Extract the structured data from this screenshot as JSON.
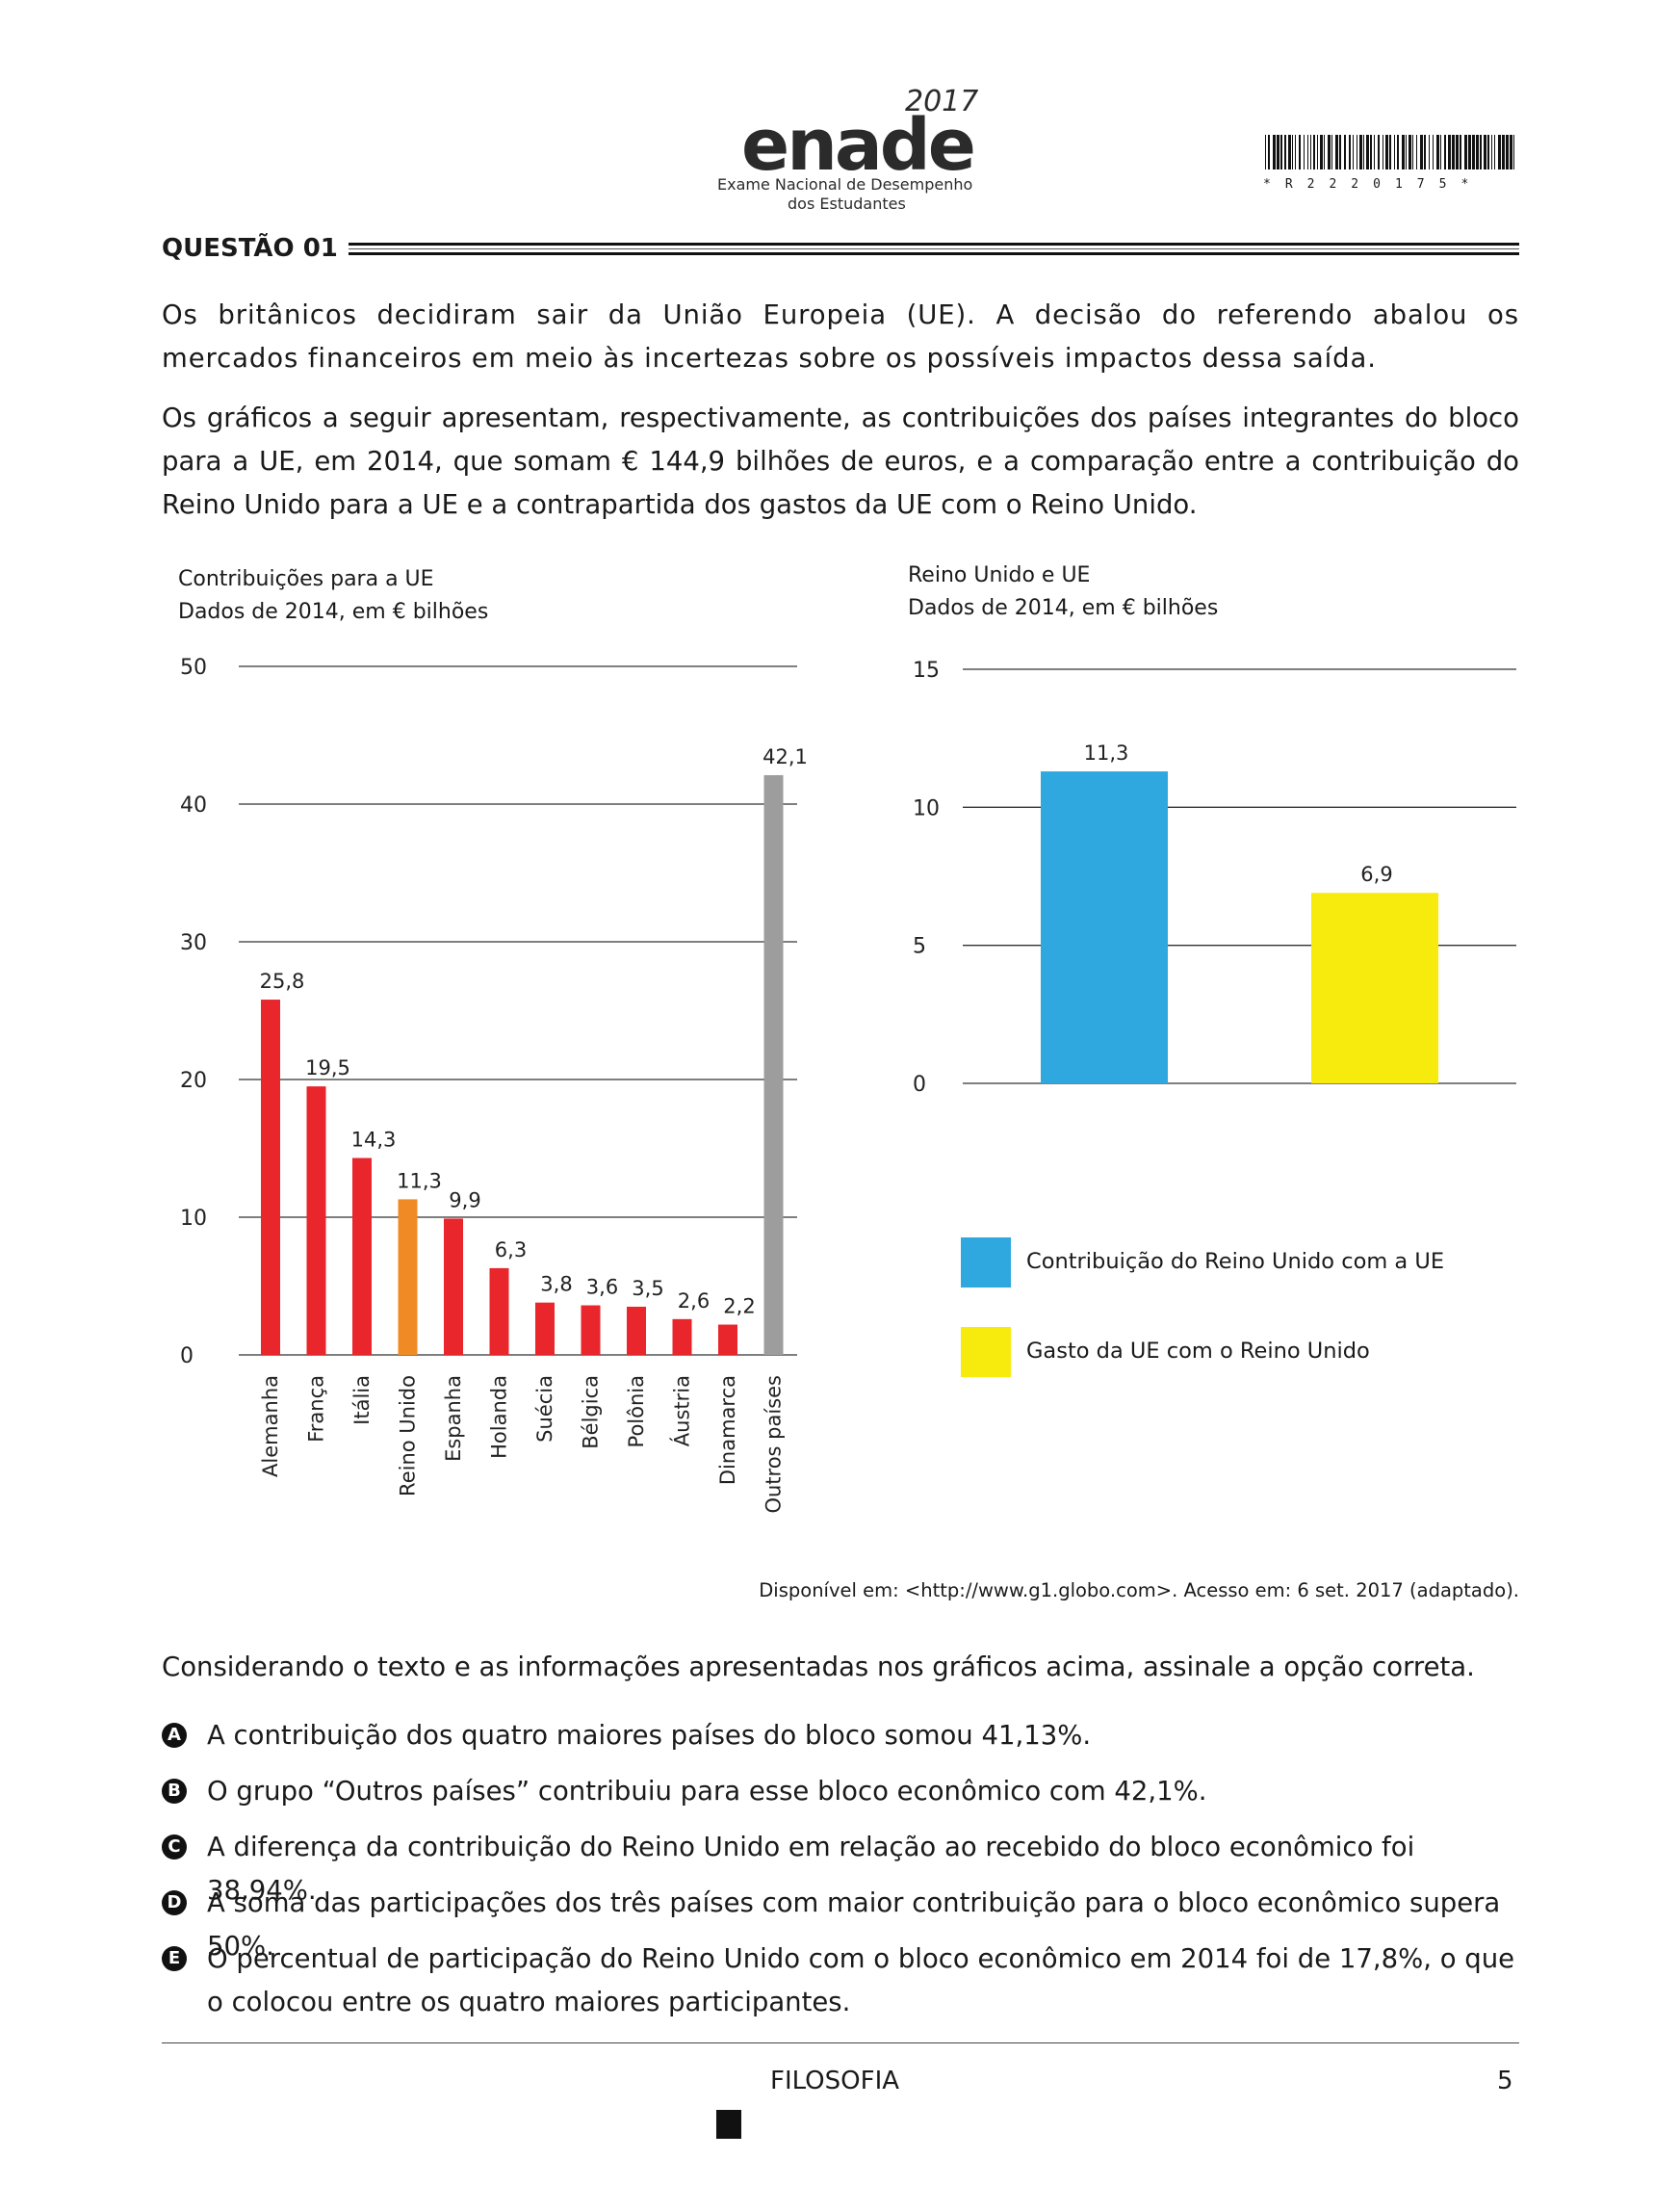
{
  "header": {
    "logo_word": "enade",
    "logo_year": "2017",
    "logo_line1": "Exame Nacional de Desempenho",
    "logo_line2": "dos Estudantes",
    "barcode_text": "*R2220175*"
  },
  "question": {
    "title": "QUESTÃO 01",
    "paragraph1": "Os britânicos decidiram sair da União Europeia (UE). A decisão do referendo abalou os mercados financeiros em meio às incertezas sobre os possíveis impactos dessa saída.",
    "paragraph2": "Os gráficos a seguir apresentam, respectivamente, as contribuições dos países integrantes do bloco para a UE, em 2014, que somam € 144,9 bilhões de euros, e a comparação entre a contribuição do Reino Unido para a UE e a contrapartida dos gastos da UE com o Reino Unido."
  },
  "chart_data": [
    {
      "type": "bar",
      "title": "Contribuições para a UE",
      "subtitle": "Dados de 2014, em € bilhões",
      "xlabel": "",
      "ylabel": "",
      "ylim": [
        0,
        50
      ],
      "yticks": [
        "0",
        "10",
        "20",
        "30",
        "40",
        "50"
      ],
      "grid": true,
      "categories": [
        "Alemanha",
        "França",
        "Itália",
        "Reino Unido",
        "Espanha",
        "Holanda",
        "Suécia",
        "Bélgica",
        "Polônia",
        "Áustria",
        "Dinamarca",
        "Outros países"
      ],
      "values": [
        25.8,
        19.5,
        14.3,
        11.3,
        9.9,
        6.3,
        3.8,
        3.6,
        3.5,
        2.6,
        2.2,
        42.1
      ],
      "value_labels": [
        "25,8",
        "19,5",
        "14,3",
        "11,3",
        "9,9",
        "6,3",
        "3,8",
        "3,6",
        "3,5",
        "2,6",
        "2,2",
        "42,1"
      ],
      "colors": [
        "#e8262b",
        "#e8262b",
        "#e8262b",
        "#f08a24",
        "#e8262b",
        "#e8262b",
        "#e8262b",
        "#e8262b",
        "#e8262b",
        "#e8262b",
        "#e8262b",
        "#9d9d9d"
      ]
    },
    {
      "type": "bar",
      "title": "Reino Unido e UE",
      "subtitle": "Dados de 2014, em € bilhões",
      "xlabel": "",
      "ylabel": "",
      "ylim": [
        0,
        15
      ],
      "yticks": [
        "0",
        "5",
        "10",
        "15"
      ],
      "grid": true,
      "legend": "bottom",
      "series": [
        {
          "name": "Contribuição do Reino Unido com a UE",
          "value": 11.3,
          "label": "11,3",
          "color": "#2fa8e0"
        },
        {
          "name": "Gasto da UE com o Reino Unido",
          "value": 6.9,
          "label": "6,9",
          "color": "#f7ea0d"
        }
      ]
    }
  ],
  "source": "Disponível em: <http://www.g1.globo.com>. Acesso em: 6 set. 2017 (adaptado).",
  "prompt": "Considerando o texto e as informações apresentadas nos gráficos acima, assinale a opção correta.",
  "options": [
    {
      "letter": "A",
      "text": "A contribuição dos quatro maiores países do bloco somou 41,13%."
    },
    {
      "letter": "B",
      "text": "O grupo “Outros países” contribuiu para esse bloco econômico com 42,1%."
    },
    {
      "letter": "C",
      "text": "A diferença da contribuição do Reino Unido em relação ao recebido do bloco econômico foi 38,94%."
    },
    {
      "letter": "D",
      "text": "A soma das participações dos três países com maior contribuição para o bloco econômico supera 50%."
    },
    {
      "letter": "E",
      "text": "O percentual de participação do Reino Unido com o bloco econômico em 2014 foi de 17,8%, o que o colocou entre os quatro maiores participantes."
    }
  ],
  "footer": {
    "subject": "FILOSOFIA",
    "page": "5"
  }
}
